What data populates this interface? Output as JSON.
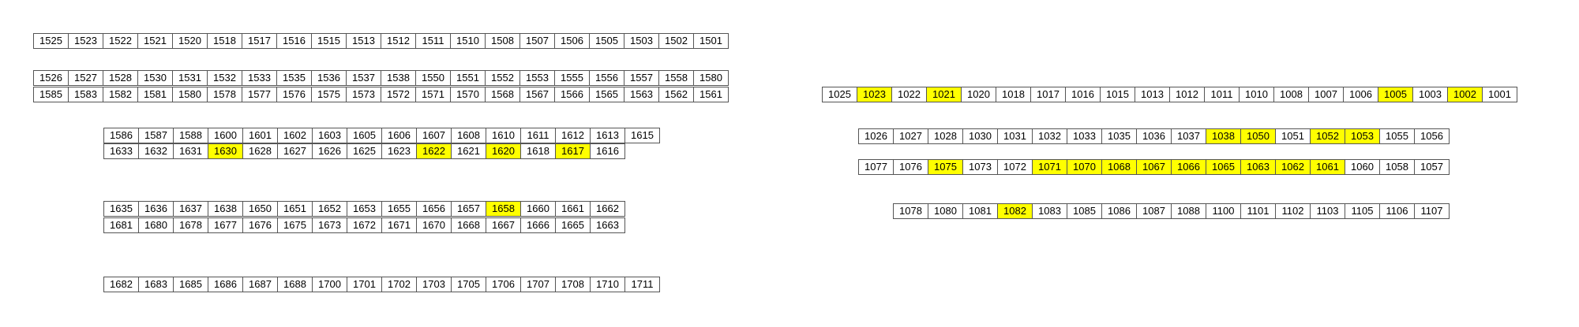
{
  "highlight_color": "#ffff00",
  "rows": [
    {
      "labels": [
        "1525",
        "1523",
        "1522",
        "1521",
        "1520",
        "1518",
        "1517",
        "1516",
        "1515",
        "1513",
        "1512",
        "1511",
        "1510",
        "1508",
        "1507",
        "1506",
        "1505",
        "1503",
        "1502",
        "1501"
      ],
      "highlighted": []
    },
    {
      "labels": [
        "1526",
        "1527",
        "1528",
        "1530",
        "1531",
        "1532",
        "1533",
        "1535",
        "1536",
        "1537",
        "1538",
        "1550",
        "1551",
        "1552",
        "1553",
        "1555",
        "1556",
        "1557",
        "1558",
        "1580"
      ],
      "highlighted": []
    },
    {
      "labels": [
        "1585",
        "1583",
        "1582",
        "1581",
        "1580",
        "1578",
        "1577",
        "1576",
        "1575",
        "1573",
        "1572",
        "1571",
        "1570",
        "1568",
        "1567",
        "1566",
        "1565",
        "1563",
        "1562",
        "1561"
      ],
      "highlighted": []
    },
    {
      "labels": [
        "1586",
        "1587",
        "1588",
        "1600",
        "1601",
        "1602",
        "1603",
        "1605",
        "1606",
        "1607",
        "1608",
        "1610",
        "1611",
        "1612",
        "1613",
        "1615"
      ],
      "highlighted": []
    },
    {
      "labels": [
        "1633",
        "1632",
        "1631",
        "1630",
        "1628",
        "1627",
        "1626",
        "1625",
        "1623",
        "1622",
        "1621",
        "1620",
        "1618",
        "1617",
        "1616"
      ],
      "highlighted": [
        "1630",
        "1622",
        "1620",
        "1617"
      ]
    },
    {
      "labels": [
        "1635",
        "1636",
        "1637",
        "1638",
        "1650",
        "1651",
        "1652",
        "1653",
        "1655",
        "1656",
        "1657",
        "1658",
        "1660",
        "1661",
        "1662"
      ],
      "highlighted": [
        "1658"
      ]
    },
    {
      "labels": [
        "1681",
        "1680",
        "1678",
        "1677",
        "1676",
        "1675",
        "1673",
        "1672",
        "1671",
        "1670",
        "1668",
        "1667",
        "1666",
        "1665",
        "1663"
      ],
      "highlighted": []
    },
    {
      "labels": [
        "1682",
        "1683",
        "1685",
        "1686",
        "1687",
        "1688",
        "1700",
        "1701",
        "1702",
        "1703",
        "1705",
        "1706",
        "1707",
        "1708",
        "1710",
        "1711"
      ],
      "highlighted": []
    },
    {
      "labels": [
        "1025",
        "1023",
        "1022",
        "1021",
        "1020",
        "1018",
        "1017",
        "1016",
        "1015",
        "1013",
        "1012",
        "1011",
        "1010",
        "1008",
        "1007",
        "1006",
        "1005",
        "1003",
        "1002",
        "1001"
      ],
      "highlighted": [
        "1023",
        "1021",
        "1005",
        "1002"
      ]
    },
    {
      "labels": [
        "1026",
        "1027",
        "1028",
        "1030",
        "1031",
        "1032",
        "1033",
        "1035",
        "1036",
        "1037",
        "1038",
        "1050",
        "1051",
        "1052",
        "1053",
        "1055",
        "1056"
      ],
      "highlighted": [
        "1038",
        "1050",
        "1052",
        "1053"
      ]
    },
    {
      "labels": [
        "1077",
        "1076",
        "1075",
        "1073",
        "1072",
        "1071",
        "1070",
        "1068",
        "1067",
        "1066",
        "1065",
        "1063",
        "1062",
        "1061",
        "1060",
        "1058",
        "1057"
      ],
      "highlighted": [
        "1075",
        "1071",
        "1070",
        "1068",
        "1067",
        "1066",
        "1065",
        "1063",
        "1062",
        "1061"
      ]
    },
    {
      "labels": [
        "1078",
        "1080",
        "1081",
        "1082",
        "1083",
        "1085",
        "1086",
        "1087",
        "1088",
        "1100",
        "1101",
        "1102",
        "1103",
        "1105",
        "1106",
        "1107"
      ],
      "highlighted": [
        "1082"
      ]
    }
  ]
}
